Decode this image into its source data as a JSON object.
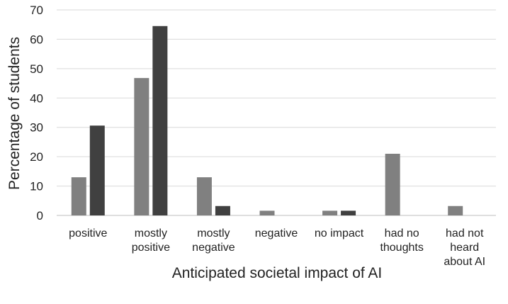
{
  "chart_data": {
    "type": "bar",
    "title": "",
    "xlabel": "Anticipated societal impact of AI",
    "ylabel": "Percentage of students",
    "ylim": [
      0,
      70
    ],
    "yticks": [
      "0",
      "10",
      "20",
      "30",
      "40",
      "50",
      "60",
      "70"
    ],
    "grid": true,
    "legend": "none",
    "categories": [
      [
        "positive"
      ],
      [
        "mostly",
        "positive"
      ],
      [
        "mostly",
        "negative"
      ],
      [
        "negative"
      ],
      [
        "no impact"
      ],
      [
        "had no",
        "thoughts"
      ],
      [
        "had not",
        "heard",
        "about AI"
      ]
    ],
    "series": [
      {
        "color": "#808080",
        "values": [
          13,
          46.8,
          13,
          1.6,
          1.6,
          21,
          3.2
        ]
      },
      {
        "color": "#404040",
        "values": [
          30.6,
          64.5,
          3.2,
          0,
          1.6,
          0,
          0
        ]
      }
    ],
    "colors": {
      "grid": "#d9d9d9",
      "axis": "#bfbfbf",
      "text": "#222222"
    }
  }
}
